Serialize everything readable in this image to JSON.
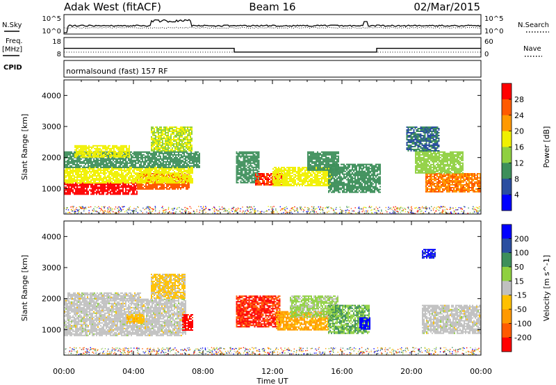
{
  "header": {
    "station": "Adak West (fitACF)",
    "beam": "Beam 16",
    "date": "02/Mar/2015"
  },
  "noise_panel": {
    "left_label": "N.Sky",
    "right_label": "N.Search",
    "left_ticks": [
      "10^5",
      "10^0"
    ],
    "right_ticks": [
      "10^5",
      "10^0"
    ]
  },
  "freq_panel": {
    "left_label_line1": "Freq.",
    "left_label_line2": "[MHz]",
    "right_label": "Nave",
    "left_ticks": [
      "18",
      "8"
    ],
    "right_ticks": [
      "60",
      "0"
    ],
    "cpid_label": "CPID",
    "program": "normalsound (fast) 157 RF"
  },
  "chart_data": [
    {
      "type": "heatmap",
      "name": "Power",
      "ylabel": "Slant Range [km]",
      "ylim": [
        180,
        4500
      ],
      "yticks": [
        1000,
        2000,
        3000,
        4000
      ],
      "colorbar_label": "Power [dB]",
      "colorbar_ticks": [
        4,
        8,
        12,
        16,
        20,
        24,
        28
      ],
      "colorbar_range": [
        0,
        32
      ],
      "colors": [
        "#0000ff",
        "#2a4ea0",
        "#3d8f5a",
        "#8fd040",
        "#f0f000",
        "#ff9900",
        "#ff5a00",
        "#ff0000"
      ],
      "regions": [
        {
          "t0": 0.0,
          "t1": 4.2,
          "r0": 800,
          "r1": 1200,
          "v": 30
        },
        {
          "t0": 4.2,
          "t1": 7.2,
          "r0": 1000,
          "r1": 1500,
          "v": 26
        },
        {
          "t0": 0.0,
          "t1": 7.4,
          "r0": 1200,
          "r1": 1700,
          "v": 18
        },
        {
          "t0": 0.0,
          "t1": 7.8,
          "r0": 1700,
          "r1": 2200,
          "v": 10
        },
        {
          "t0": 0.6,
          "t1": 3.8,
          "r0": 2000,
          "r1": 2400,
          "v": 18
        },
        {
          "t0": 5.0,
          "t1": 7.4,
          "r0": 2200,
          "r1": 3000,
          "v": 16
        },
        {
          "t0": 9.9,
          "t1": 11.2,
          "r0": 1200,
          "r1": 2200,
          "v": 10
        },
        {
          "t0": 11.0,
          "t1": 12.6,
          "r0": 1100,
          "r1": 1500,
          "v": 28
        },
        {
          "t0": 12.0,
          "t1": 15.4,
          "r0": 1100,
          "r1": 1700,
          "v": 18
        },
        {
          "t0": 14.0,
          "t1": 15.8,
          "r0": 1600,
          "r1": 2200,
          "v": 10
        },
        {
          "t0": 15.2,
          "t1": 18.2,
          "r0": 900,
          "r1": 1800,
          "v": 10
        },
        {
          "t0": 20.8,
          "t1": 24.0,
          "r0": 900,
          "r1": 1500,
          "v": 24
        },
        {
          "t0": 20.2,
          "t1": 23.0,
          "r0": 1500,
          "r1": 2200,
          "v": 14
        },
        {
          "t0": 19.7,
          "t1": 21.6,
          "r0": 2200,
          "r1": 3000,
          "v": 8
        }
      ]
    },
    {
      "type": "heatmap",
      "name": "Velocity",
      "ylabel": "Slant Range [km]",
      "ylim": [
        180,
        4500
      ],
      "yticks": [
        1000,
        2000,
        3000,
        4000
      ],
      "colorbar_label": "Velocity [m s^-1]",
      "colorbar_ticks": [
        -200,
        -100,
        -50,
        -15,
        15,
        50,
        100,
        200
      ],
      "colorbar_range": [
        -250,
        250
      ],
      "colors": [
        "#ff0000",
        "#ff5a00",
        "#ff9900",
        "#ffc000",
        "#c0c0c0",
        "#8fd040",
        "#3d8f5a",
        "#2a4ea0",
        "#0000ff"
      ],
      "regions": [
        {
          "t0": 0.0,
          "t1": 7.0,
          "r0": 800,
          "r1": 2000,
          "v": 0
        },
        {
          "t0": 0.2,
          "t1": 4.4,
          "r0": 2000,
          "r1": 2200,
          "v": 0
        },
        {
          "t0": 3.6,
          "t1": 4.6,
          "r0": 1200,
          "r1": 1500,
          "v": -60
        },
        {
          "t0": 6.8,
          "t1": 7.4,
          "r0": 1000,
          "r1": 1500,
          "v": -220
        },
        {
          "t0": 5.0,
          "t1": 7.0,
          "r0": 2000,
          "r1": 2800,
          "v": -40
        },
        {
          "t0": 9.9,
          "t1": 12.4,
          "r0": 1100,
          "r1": 2100,
          "v": -200
        },
        {
          "t0": 12.2,
          "t1": 15.2,
          "r0": 1000,
          "r1": 1600,
          "v": -90
        },
        {
          "t0": 13.0,
          "t1": 15.8,
          "r0": 1400,
          "r1": 2100,
          "v": 40
        },
        {
          "t0": 15.2,
          "t1": 17.6,
          "r0": 900,
          "r1": 1800,
          "v": 80
        },
        {
          "t0": 17.0,
          "t1": 17.6,
          "r0": 1000,
          "r1": 1400,
          "v": 220
        },
        {
          "t0": 20.6,
          "t1": 24.0,
          "r0": 900,
          "r1": 1800,
          "v": 0
        },
        {
          "t0": 20.6,
          "t1": 21.4,
          "r0": 3300,
          "r1": 3600,
          "v": 210
        }
      ]
    }
  ],
  "x_axis": {
    "ticks": [
      "00:00",
      "04:00",
      "08:00",
      "12:00",
      "16:00",
      "20:00",
      "00:00"
    ],
    "label": "Time UT",
    "range_hours": [
      0,
      24
    ]
  },
  "frequency_series": {
    "hours": [
      0,
      9.8,
      9.8,
      18.0,
      18.0,
      24
    ],
    "mhz": [
      12.3,
      12.3,
      10.3,
      10.3,
      12.3,
      12.3
    ]
  }
}
